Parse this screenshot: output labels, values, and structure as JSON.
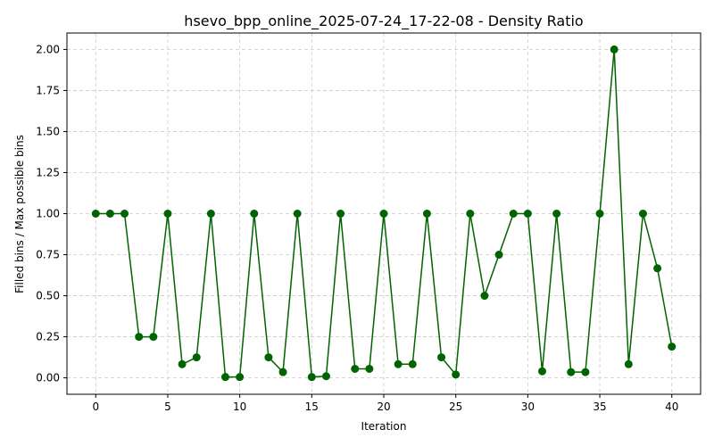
{
  "chart_data": {
    "type": "line",
    "title": "hsevo_bpp_online_2025-07-24_17-22-08 - Density Ratio",
    "xlabel": "Iteration",
    "ylabel": "Filled bins / Max possible bins",
    "xlim": [
      -2,
      42
    ],
    "ylim": [
      -0.1,
      2.1
    ],
    "xticks": [
      0,
      5,
      10,
      15,
      20,
      25,
      30,
      35,
      40
    ],
    "yticks": [
      0.0,
      0.25,
      0.5,
      0.75,
      1.0,
      1.25,
      1.5,
      1.75,
      2.0
    ],
    "ytick_labels": [
      "0.00",
      "0.25",
      "0.50",
      "0.75",
      "1.00",
      "1.25",
      "1.50",
      "1.75",
      "2.00"
    ],
    "grid": true,
    "color": "#006400",
    "marker": "circle",
    "x": [
      0,
      1,
      2,
      3,
      4,
      5,
      6,
      7,
      8,
      9,
      10,
      11,
      12,
      13,
      14,
      15,
      16,
      17,
      18,
      19,
      20,
      21,
      22,
      23,
      24,
      25,
      26,
      27,
      28,
      29,
      30,
      31,
      32,
      33,
      34,
      35,
      36,
      37,
      38,
      39,
      40
    ],
    "y": [
      1.0,
      1.0,
      1.0,
      0.25,
      0.25,
      1.0,
      0.083,
      0.125,
      1.0,
      0.005,
      0.005,
      1.0,
      0.125,
      0.035,
      1.0,
      0.005,
      0.01,
      1.0,
      0.055,
      0.055,
      1.0,
      0.083,
      0.083,
      1.0,
      0.125,
      0.02,
      1.0,
      0.5,
      0.75,
      1.0,
      1.0,
      0.04,
      1.0,
      0.035,
      0.035,
      1.0,
      2.0,
      0.083,
      1.0,
      0.667,
      0.19
    ]
  }
}
